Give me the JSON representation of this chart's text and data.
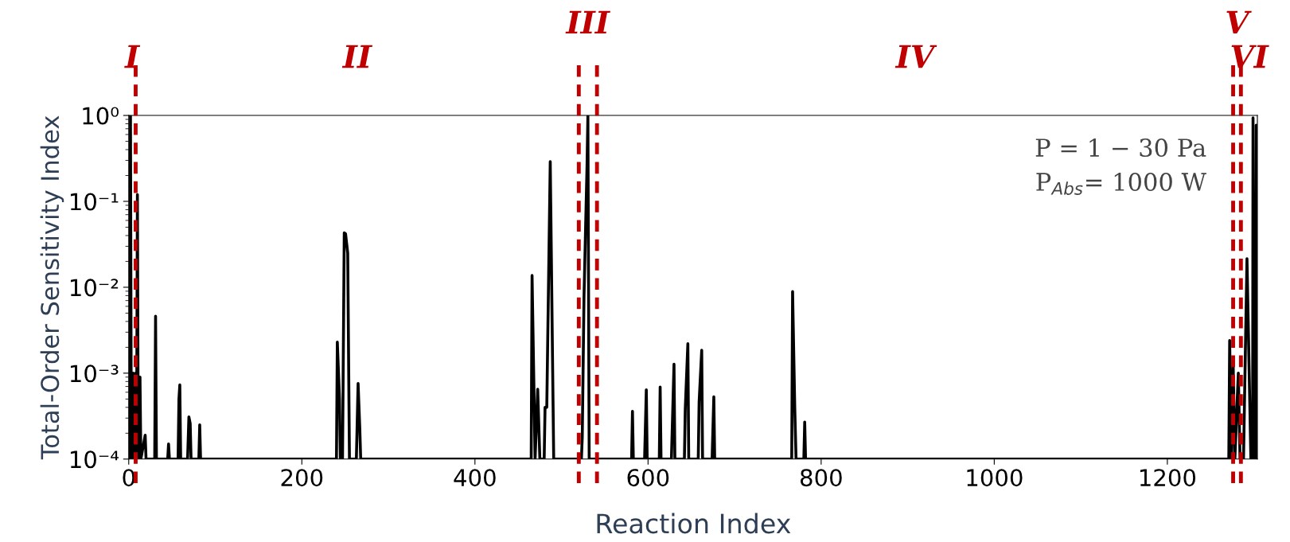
{
  "chart_data": {
    "type": "line",
    "xlabel": "Reaction Index",
    "ylabel": "Total-Order Sensitivity Index",
    "log": "y",
    "xlim": [
      0,
      1304
    ],
    "xticks": [
      0,
      200,
      400,
      600,
      800,
      1000,
      1200
    ],
    "ylim": [
      0.0001,
      1
    ],
    "yticks": [
      {
        "value": 0.0001,
        "label": "10⁻⁴"
      },
      {
        "value": 0.001,
        "label": "10⁻³"
      },
      {
        "value": 0.01,
        "label": "10⁻²"
      },
      {
        "value": 0.1,
        "label": "10⁻¹"
      },
      {
        "value": 1,
        "label": "10⁰"
      }
    ],
    "grid": false,
    "legend": false,
    "marker": "none",
    "line_style": "solid",
    "series": [
      {
        "color": "#000000",
        "x": [
          0,
          1,
          2,
          3,
          5,
          6,
          8,
          9,
          10,
          11,
          13,
          14,
          19,
          20,
          30,
          31,
          32,
          45,
          46,
          47,
          57,
          58,
          59,
          60,
          68,
          69.5,
          71,
          72,
          81,
          82,
          83,
          240,
          241,
          243.5,
          244.5,
          247,
          249,
          250.5,
          253,
          255,
          263,
          265,
          267,
          268,
          465,
          466,
          469.5,
          472.5,
          475,
          480,
          481,
          483,
          487,
          491,
          523,
          524,
          526,
          529.5,
          530.5,
          532,
          581,
          582,
          583,
          596,
          598,
          599,
          613,
          614,
          615,
          627,
          630,
          631,
          642,
          643,
          646,
          647,
          658,
          659,
          662,
          663,
          674,
          676,
          677,
          766,
          767,
          769.5,
          771,
          780,
          781,
          782,
          1271,
          1272,
          1274,
          1276,
          1278,
          1282,
          1284,
          1288,
          1292,
          1296.5,
          1298.5,
          1299,
          1300,
          1302,
          1302.7,
          1303.5
        ],
        "values": [
          0.001,
          0.0001,
          1.0,
          0.0001,
          0.001,
          0.0001,
          0.001,
          0.0001,
          0.12,
          0.0001,
          0.0009,
          0.0001,
          0.00019,
          0.0001,
          0.0001,
          0.0046,
          0.0001,
          0.0001,
          0.00015,
          0.0001,
          0.0001,
          0.0005,
          0.00073,
          0.0001,
          0.0001,
          0.00031,
          0.00026,
          0.0001,
          0.0001,
          0.00025,
          0.0001,
          0.0001,
          0.0023,
          0.0005,
          0.0001,
          0.0001,
          0.043,
          0.042,
          0.025,
          0.0001,
          0.0001,
          0.00076,
          0.00022,
          0.0001,
          0.0001,
          0.0137,
          0.0001,
          0.00065,
          0.0001,
          0.0001,
          0.0004,
          0.0004,
          0.29,
          0.0001,
          0.0001,
          0.00018,
          0.0077,
          0.26,
          1.0,
          0.0001,
          0.0001,
          0.00036,
          0.0001,
          0.0001,
          0.00064,
          0.0001,
          0.0001,
          0.00069,
          0.0001,
          0.0001,
          0.00127,
          0.0001,
          0.0001,
          0.00038,
          0.0022,
          0.0001,
          0.0001,
          0.00046,
          0.00185,
          0.0001,
          0.0001,
          0.00053,
          0.0001,
          0.0001,
          0.0089,
          0.0004,
          0.0001,
          0.0001,
          0.00027,
          0.0001,
          0.0001,
          0.0024,
          0.0001,
          0.00135,
          0.0001,
          0.001,
          0.0001,
          0.0001,
          0.0215,
          0.0001,
          0.0001,
          0.94,
          0.0001,
          0.0001,
          0.77,
          0.0001
        ]
      }
    ],
    "ref_lines": [
      {
        "axis": "x",
        "value": 8,
        "color": "#c00000",
        "line_style": "dashed"
      },
      {
        "axis": "x",
        "value": 520,
        "color": "#c00000",
        "line_style": "dashed"
      },
      {
        "axis": "x",
        "value": 541,
        "color": "#c00000",
        "line_style": "dashed"
      },
      {
        "axis": "x",
        "value": 1276,
        "color": "#c00000",
        "line_style": "dashed"
      },
      {
        "axis": "x",
        "value": 1285,
        "color": "#c00000",
        "line_style": "dashed"
      }
    ],
    "annotations": [
      "I",
      "II",
      "III",
      "IV",
      "V",
      "VI",
      "P = 1 − 30 Pa",
      "P$_{Abs}$= 1000 W"
    ]
  }
}
